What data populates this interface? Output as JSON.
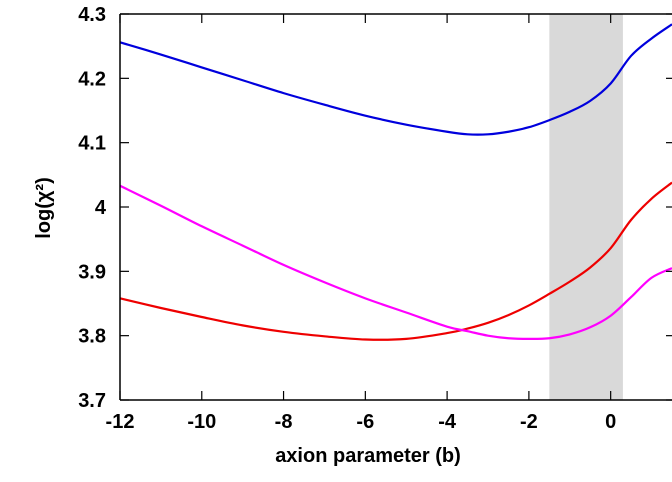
{
  "chart_data": {
    "type": "line",
    "xlabel": "axion parameter (b)",
    "ylabel": "log(χ²)",
    "xlim": [
      -12,
      1.5
    ],
    "ylim": [
      3.7,
      4.3
    ],
    "xticks": [
      "-12",
      "-10",
      "-8",
      "-6",
      "-4",
      "-2",
      "0"
    ],
    "yticks": [
      "3.7",
      "3.8",
      "3.9",
      "4",
      "4.1",
      "4.2",
      "4.3"
    ],
    "grid": false,
    "shaded_region": {
      "x_from": -1.5,
      "x_to": 0.3,
      "color": "#d9d9d9"
    },
    "series": [
      {
        "color": "#0000dd",
        "x": [
          -12,
          -11,
          -10,
          -9,
          -8,
          -7,
          -6,
          -5,
          -4,
          -3.5,
          -3,
          -2.5,
          -2,
          -1.5,
          -1,
          -0.5,
          0,
          0.5,
          1,
          1.5
        ],
        "y": [
          4.256,
          4.237,
          4.217,
          4.197,
          4.177,
          4.159,
          4.142,
          4.128,
          4.117,
          4.113,
          4.113,
          4.117,
          4.124,
          4.135,
          4.148,
          4.165,
          4.192,
          4.235,
          4.262,
          4.284
        ]
      },
      {
        "color": "#ee0000",
        "x": [
          -12,
          -11,
          -10,
          -9,
          -8,
          -7,
          -6,
          -5,
          -4,
          -3.5,
          -3,
          -2.5,
          -2,
          -1.5,
          -1,
          -0.5,
          0,
          0.5,
          1,
          1.5
        ],
        "y": [
          3.858,
          3.843,
          3.829,
          3.816,
          3.806,
          3.799,
          3.794,
          3.795,
          3.804,
          3.811,
          3.82,
          3.832,
          3.847,
          3.865,
          3.884,
          3.906,
          3.936,
          3.98,
          4.013,
          4.038
        ]
      },
      {
        "color": "#ff00ff",
        "x": [
          -12,
          -11,
          -10,
          -9,
          -8,
          -7,
          -6,
          -5,
          -4,
          -3.5,
          -3,
          -2.5,
          -2,
          -1.5,
          -1,
          -0.5,
          0,
          0.5,
          1,
          1.5
        ],
        "y": [
          4.033,
          4.002,
          3.97,
          3.94,
          3.91,
          3.883,
          3.858,
          3.836,
          3.814,
          3.807,
          3.8,
          3.796,
          3.795,
          3.796,
          3.802,
          3.813,
          3.831,
          3.86,
          3.89,
          3.905
        ]
      }
    ]
  }
}
